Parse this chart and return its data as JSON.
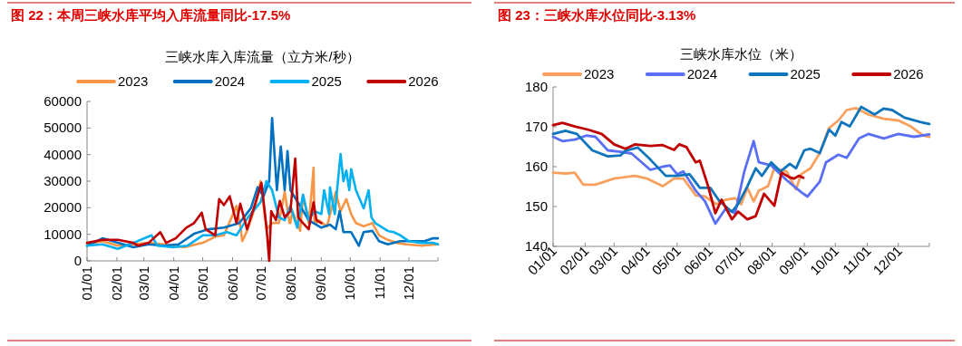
{
  "chart_data": [
    {
      "type": "line",
      "title": "图 22：本周三峡水库平均入库流量同比-17.5%",
      "subtitle": "三峡水库入库流量（立方米/秒）",
      "legend": "top",
      "grid": false,
      "marker": "none",
      "line_style": "solid",
      "xlim": [
        "--01-01",
        "--12-31"
      ],
      "xticks": [
        {
          "value": "--01-01",
          "label": "01/01"
        },
        {
          "value": "--02-01",
          "label": "02/01"
        },
        {
          "value": "--03-01",
          "label": "03/01"
        },
        {
          "value": "--04-01",
          "label": "04/01"
        },
        {
          "value": "--05-01",
          "label": "05/01"
        },
        {
          "value": "--06-01",
          "label": "06/01"
        },
        {
          "value": "--07-01",
          "label": "07/01"
        },
        {
          "value": "--08-01",
          "label": "08/01"
        },
        {
          "value": "--09-01",
          "label": "09/01"
        },
        {
          "value": "--10-01",
          "label": "10/01"
        },
        {
          "value": "--11-01",
          "label": "11/01"
        },
        {
          "value": "--12-01",
          "label": "12/01"
        }
      ],
      "ylim": [
        0,
        60000
      ],
      "yticks": [
        0,
        10000,
        20000,
        30000,
        40000,
        50000,
        60000
      ],
      "series": [
        {
          "name": "2023",
          "color": "#f79646",
          "x": [
            "--01-01",
            "--01-17",
            "--02-02",
            "--02-18",
            "--03-06",
            "--03-21",
            "--04-12",
            "--05-01",
            "--05-14",
            "--05-23",
            "--06-05",
            "--06-09",
            "--06-11",
            "--06-16",
            "--06-24",
            "--06-30",
            "--07-06",
            "--07-12",
            "--07-19",
            "--07-25",
            "--07-30",
            "--07-31",
            "--08-02",
            "--08-10",
            "--08-13",
            "--08-19",
            "--08-22",
            "--08-24",
            "--08-25",
            "--08-27",
            "--08-29",
            "--09-07",
            "--09-16",
            "--09-21",
            "--09-27",
            "--10-02",
            "--10-07",
            "--10-15",
            "--10-24",
            "--10-31",
            "--11-09",
            "--11-18",
            "--11-28",
            "--12-14",
            "--12-31"
          ],
          "values": [
            6200,
            7400,
            5700,
            6200,
            6800,
            6200,
            5100,
            6800,
            9100,
            9600,
            20700,
            13000,
            7400,
            11300,
            19800,
            30000,
            11900,
            14200,
            14200,
            26000,
            14200,
            14200,
            18700,
            11300,
            24900,
            14200,
            26000,
            35100,
            14200,
            14200,
            15300,
            13000,
            26000,
            18700,
            23200,
            17600,
            14200,
            13000,
            14200,
            9600,
            7900,
            6800,
            6200,
            5700,
            6200
          ]
        },
        {
          "name": "2024",
          "color": "#0070c0",
          "x": [
            "--01-01",
            "--01-17",
            "--02-02",
            "--02-18",
            "--03-06",
            "--03-21",
            "--04-06",
            "--04-22",
            "--05-07",
            "--05-23",
            "--06-08",
            "--06-20",
            "--06-27",
            "--07-03",
            "--07-09",
            "--07-12",
            "--07-17",
            "--07-21",
            "--07-25",
            "--07-28",
            "--07-31",
            "--08-10",
            "--08-19",
            "--09-01",
            "--09-10",
            "--09-16",
            "--09-20",
            "--09-24",
            "--10-02",
            "--10-10",
            "--10-15",
            "--10-24",
            "--10-31",
            "--11-09",
            "--11-22",
            "--12-04",
            "--12-17",
            "--12-26",
            "--12-31"
          ],
          "values": [
            5700,
            8500,
            6800,
            5100,
            6200,
            5700,
            6200,
            10200,
            11900,
            12500,
            14200,
            19800,
            27700,
            24300,
            30000,
            53800,
            26600,
            43000,
            26600,
            41300,
            26600,
            20700,
            15300,
            12500,
            13600,
            11900,
            18700,
            10800,
            10800,
            5700,
            10800,
            11300,
            7400,
            6200,
            7400,
            7400,
            7400,
            8500,
            8500
          ]
        },
        {
          "name": "2025",
          "color": "#00b0f0",
          "x": [
            "--01-01",
            "--01-17",
            "--02-02",
            "--02-18",
            "--03-09",
            "--03-15",
            "--03-31",
            "--04-15",
            "--05-01",
            "--05-14",
            "--05-26",
            "--06-05",
            "--06-17",
            "--06-30",
            "--07-06",
            "--07-12",
            "--07-19",
            "--07-25",
            "--07-31",
            "--08-07",
            "--08-13",
            "--08-19",
            "--08-25",
            "--09-01",
            "--09-04",
            "--09-09",
            "--09-10",
            "--09-15",
            "--09-21",
            "--09-24",
            "--09-27",
            "--09-30",
            "--10-02",
            "--10-07",
            "--10-15",
            "--10-20",
            "--10-23",
            "--10-27",
            "--11-09",
            "--11-15",
            "--11-22",
            "--12-01",
            "--12-14",
            "--12-26",
            "--12-31"
          ],
          "values": [
            5700,
            6200,
            4500,
            6800,
            9600,
            5700,
            5100,
            5700,
            9600,
            9600,
            10800,
            9600,
            16400,
            22100,
            30000,
            26600,
            16400,
            15300,
            20700,
            12500,
            24900,
            15300,
            18700,
            17600,
            26600,
            17600,
            27700,
            17600,
            40200,
            30000,
            34000,
            26600,
            34500,
            26600,
            19800,
            26600,
            16400,
            14200,
            11300,
            10800,
            9600,
            7400,
            6800,
            6800,
            6200
          ]
        },
        {
          "name": "2026",
          "color": "#c00000",
          "x": [
            "--01-01",
            "--01-17",
            "--02-02",
            "--02-18",
            "--02-23",
            "--03-06",
            "--03-18",
            "--03-24",
            "--04-03",
            "--04-14",
            "--04-22",
            "--04-30",
            "--05-04",
            "--05-14",
            "--05-18",
            "--05-23",
            "--05-29",
            "--06-05",
            "--06-09",
            "--06-16",
            "--06-24",
            "--07-01",
            "--07-06",
            "--07-09",
            "--07-11",
            "--07-16",
            "--07-20",
            "--07-25",
            "--07-31",
            "--08-05",
            "--08-08",
            "--08-13",
            "--08-19",
            "--08-24",
            "--08-27",
            "--09-01"
          ],
          "values": [
            6800,
            7900,
            7900,
            6800,
            5700,
            6800,
            10800,
            6800,
            8500,
            12500,
            14200,
            18100,
            11900,
            9600,
            23200,
            21000,
            24300,
            14200,
            21500,
            11900,
            21000,
            29400,
            13000,
            0,
            18700,
            15300,
            22600,
            16400,
            18700,
            38500,
            16400,
            14200,
            11900,
            22100,
            15300,
            14200
          ]
        }
      ]
    },
    {
      "type": "line",
      "title": "图 23：三峡水库水位同比-3.13%",
      "subtitle": "三峡水库水位（米）",
      "legend": "top",
      "grid": false,
      "marker": "none",
      "line_style": "solid",
      "xlim": [
        "--01-01",
        "--12-31"
      ],
      "xticks": [
        {
          "value": "--01-01",
          "label": "01/01"
        },
        {
          "value": "--02-01",
          "label": "02/01"
        },
        {
          "value": "--03-01",
          "label": "03/01"
        },
        {
          "value": "--04-01",
          "label": "04/01"
        },
        {
          "value": "--05-01",
          "label": "05/01"
        },
        {
          "value": "--06-01",
          "label": "06/01"
        },
        {
          "value": "--07-01",
          "label": "07/01"
        },
        {
          "value": "--08-01",
          "label": "08/01"
        },
        {
          "value": "--09-01",
          "label": "09/01"
        },
        {
          "value": "--10-01",
          "label": "10/01"
        },
        {
          "value": "--11-01",
          "label": "11/01"
        },
        {
          "value": "--12-01",
          "label": "12/01"
        }
      ],
      "ylim": [
        140,
        180
      ],
      "yticks": [
        140,
        150,
        160,
        170,
        180
      ],
      "series": [
        {
          "name": "2023",
          "color": "#f9a05f",
          "x": [
            "--01-01",
            "--01-13",
            "--01-22",
            "--01-30",
            "--02-11",
            "--03-01",
            "--03-21",
            "--04-02",
            "--04-17",
            "--04-28",
            "--05-07",
            "--05-19",
            "--05-28",
            "--06-08",
            "--06-17",
            "--06-26",
            "--07-02",
            "--07-08",
            "--07-14",
            "--07-19",
            "--07-28",
            "--08-03",
            "--08-15",
            "--08-24",
            "--08-29",
            "--09-07",
            "--09-16",
            "--09-25",
            "--10-04",
            "--10-12",
            "--10-21",
            "--11-02",
            "--11-17",
            "--12-01",
            "--12-13",
            "--12-25",
            "--12-31"
          ],
          "values": [
            158.5,
            158.3,
            158.5,
            155.5,
            155.5,
            157,
            157.7,
            157,
            155.1,
            157,
            157,
            152.8,
            152.5,
            150.6,
            151.7,
            152.1,
            150.6,
            154.7,
            151.3,
            154,
            155.1,
            159.6,
            158.8,
            154.3,
            158.1,
            159.6,
            163.4,
            169.7,
            171.6,
            174.2,
            174.7,
            173.1,
            172,
            171.6,
            170.1,
            167.8,
            167.5
          ]
        },
        {
          "name": "2024",
          "color": "#5a6ff5",
          "x": [
            "--01-01",
            "--01-10",
            "--01-22",
            "--02-02",
            "--02-11",
            "--02-23",
            "--03-07",
            "--03-18",
            "--04-05",
            "--04-17",
            "--04-24",
            "--05-01",
            "--05-07",
            "--05-19",
            "--05-28",
            "--06-07",
            "--06-17",
            "--06-26",
            "--07-05",
            "--07-14",
            "--07-19",
            "--07-31",
            "--08-15",
            "--08-29",
            "--09-04",
            "--09-16",
            "--09-22",
            "--10-04",
            "--10-12",
            "--10-24",
            "--11-02",
            "--11-17",
            "--12-01",
            "--12-16",
            "--12-31"
          ],
          "values": [
            167.5,
            166.4,
            166.8,
            167.8,
            167.5,
            164.1,
            163.7,
            163.3,
            159.2,
            160,
            160.3,
            158.1,
            158.8,
            154,
            151.3,
            145.7,
            149.5,
            148.3,
            158.8,
            166.4,
            161.1,
            160.3,
            156.6,
            153.6,
            152.5,
            156.2,
            161.1,
            163,
            162.2,
            167.1,
            168.2,
            167.1,
            168.2,
            167.5,
            168.1
          ]
        },
        {
          "name": "2025",
          "color": "#0f75bd",
          "x": [
            "--01-01",
            "--01-13",
            "--01-24",
            "--02-08",
            "--02-23",
            "--03-07",
            "--03-12",
            "--03-24",
            "--04-05",
            "--04-20",
            "--05-01",
            "--05-13",
            "--05-23",
            "--06-02",
            "--06-11",
            "--06-23",
            "--06-29",
            "--07-08",
            "--07-16",
            "--07-22",
            "--07-31",
            "--08-09",
            "--08-18",
            "--08-24",
            "--09-01",
            "--09-07",
            "--09-16",
            "--09-25",
            "--10-01",
            "--10-07",
            "--10-15",
            "--10-26",
            "--11-08",
            "--11-17",
            "--11-25",
            "--12-07",
            "--12-22",
            "--12-31"
          ],
          "values": [
            168.2,
            169,
            168.2,
            164.1,
            162.6,
            162.8,
            164,
            164.8,
            161.8,
            157.7,
            157.7,
            158.1,
            154.7,
            154.7,
            151.3,
            148.7,
            150.6,
            155.1,
            159.6,
            157.7,
            161.1,
            158.8,
            160.7,
            159.6,
            164.1,
            164.5,
            163.4,
            169.3,
            167.8,
            171.2,
            170.1,
            175,
            173.1,
            174.6,
            174.2,
            172.3,
            171.2,
            170.7
          ]
        },
        {
          "name": "2026",
          "color": "#c00000",
          "x": [
            "--01-01",
            "--01-10",
            "--01-22",
            "--02-05",
            "--02-17",
            "--03-01",
            "--03-12",
            "--03-21",
            "--04-05",
            "--04-17",
            "--04-28",
            "--05-03",
            "--05-10",
            "--05-19",
            "--05-23",
            "--05-31",
            "--06-07",
            "--06-13",
            "--06-23",
            "--06-29",
            "--07-08",
            "--07-16",
            "--07-24",
            "--08-03",
            "--08-10",
            "--08-18",
            "--08-22",
            "--08-27",
            "--08-31"
          ],
          "values": [
            170.4,
            171,
            170.1,
            169.2,
            168.2,
            165.6,
            164.5,
            165.6,
            165.2,
            165.4,
            164.2,
            165.6,
            164.9,
            161.1,
            161.5,
            155.1,
            148.3,
            151.7,
            146.8,
            148.7,
            146.8,
            147.6,
            153.2,
            150.2,
            158.5,
            157.3,
            157,
            157.7,
            157.2
          ]
        }
      ]
    }
  ]
}
